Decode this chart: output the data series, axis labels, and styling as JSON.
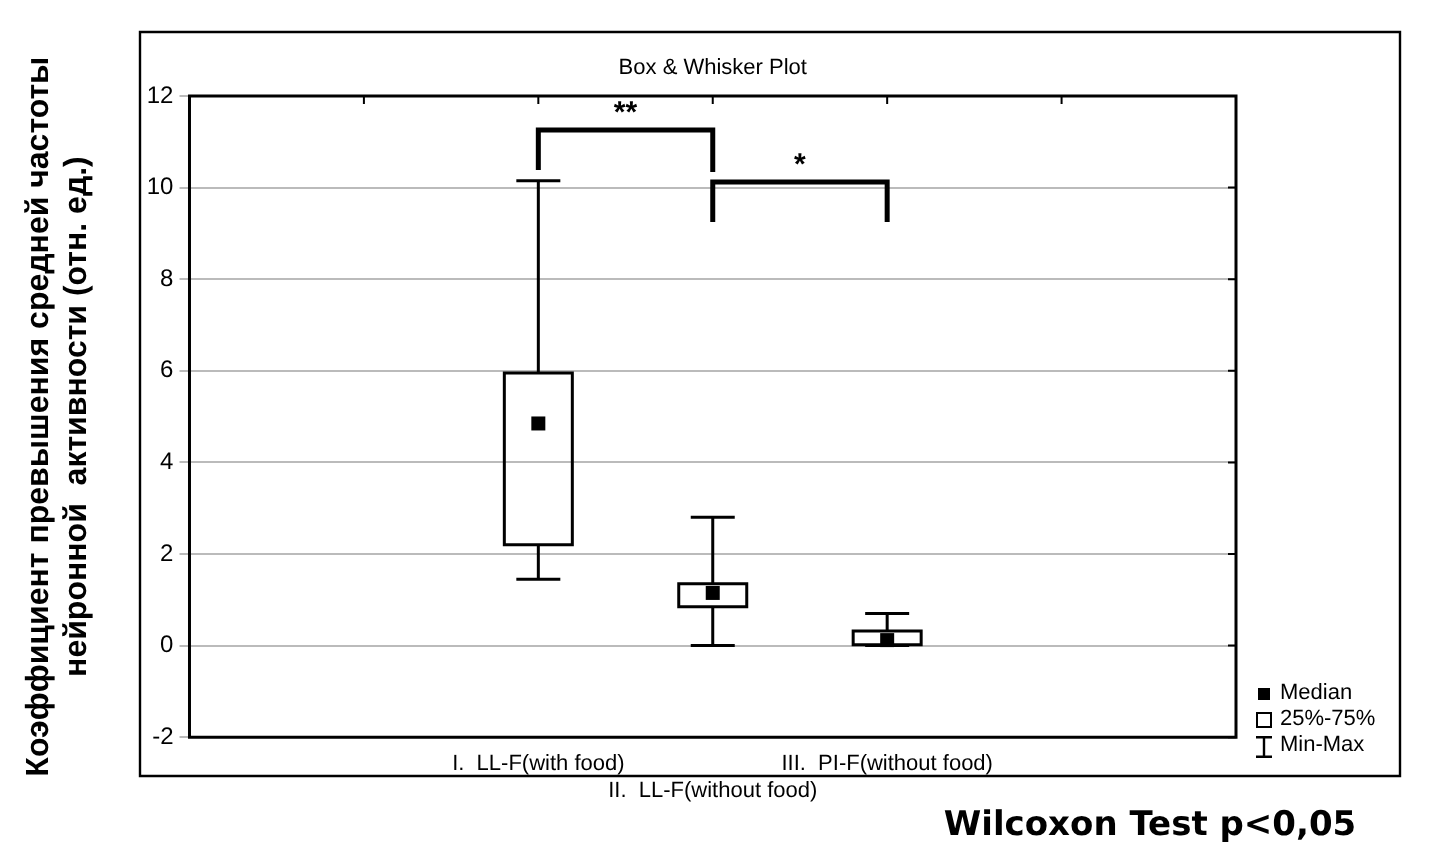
{
  "chart_data": {
    "type": "box",
    "title": "Box & Whisker Plot",
    "ylabel": "Коэффициент превышения средней частоты\nнейронной  активности (отн. ед.)",
    "categories": [
      null,
      null,
      "I.  LL-F(with food)",
      "II.  LL-F(without food)",
      "III.  PI-F(without food)",
      null,
      null
    ],
    "boxes": [
      null,
      null,
      {
        "low": 1.45,
        "q1": 2.2,
        "median": 4.85,
        "q3": 5.95,
        "high": 10.15
      },
      {
        "low": 0,
        "q1": 0.85,
        "median": 1.15,
        "q3": 1.35,
        "high": 2.8
      },
      {
        "low": 0,
        "q1": 0.02,
        "median": 0.12,
        "q3": 0.32,
        "high": 0.7
      },
      null,
      null
    ],
    "color": "#000000",
    "ylim": [
      -2,
      12
    ],
    "yticks": [
      -2,
      0,
      2,
      4,
      6,
      8,
      10,
      12
    ],
    "grid": "y",
    "annotations": [
      "**",
      "*",
      "Median",
      "25%-75%",
      "Min-Max",
      "Wilcoxon Test p<0,05"
    ]
  }
}
